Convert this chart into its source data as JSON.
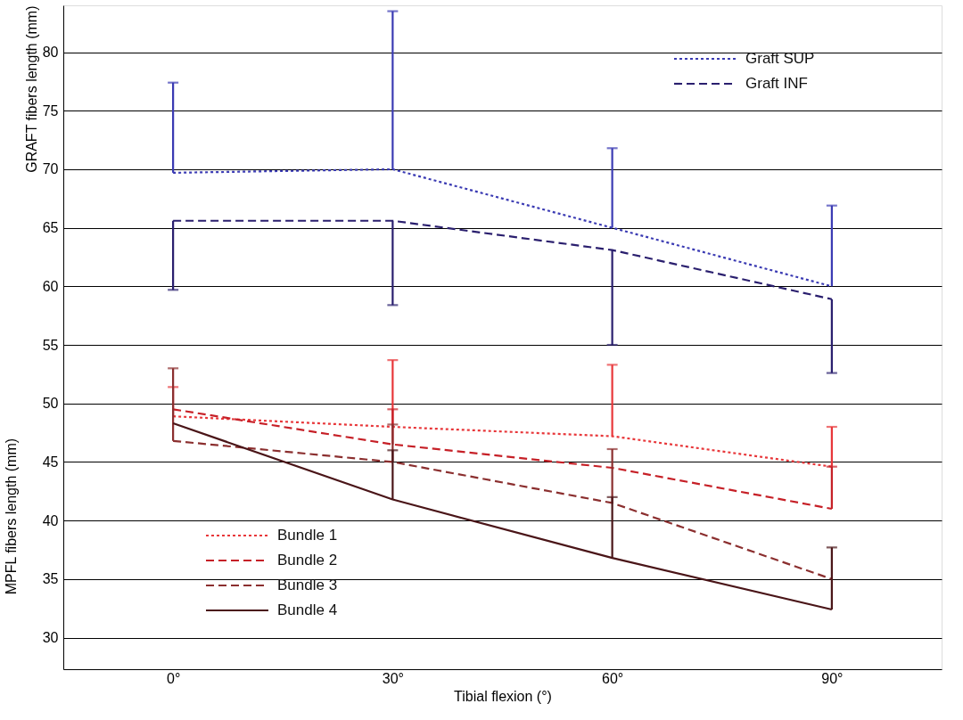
{
  "chart_data": {
    "type": "line",
    "xlabel": "Tibial flexion (°)",
    "ylabel": "GRAFT fibers length (mm)",
    "annotations": [
      "MPFL fibers length (mm)"
    ],
    "categories": [
      "0°",
      "30°",
      "60°",
      "90°"
    ],
    "ylim": [
      27.3,
      84
    ],
    "yticks": [
      30,
      35,
      40,
      45,
      50,
      55,
      60,
      65,
      70,
      75,
      80
    ],
    "grid": "y",
    "legend": "top right",
    "marker": "none",
    "series": [
      {
        "name": "Graft SUP",
        "color": "#3b3bb3",
        "line_style": "dotted",
        "values": [
          69.7,
          70.0,
          65.0,
          60.0
        ],
        "errors": [
          [
            69.7,
            77.4
          ],
          [
            70.0,
            83.5
          ],
          [
            65.0,
            71.8
          ],
          [
            60.0,
            66.9
          ]
        ]
      },
      {
        "name": "Graft INF",
        "color": "#2a1f6e",
        "line_style": "dashed",
        "values": [
          65.6,
          65.6,
          63.1,
          58.9
        ],
        "errors": [
          [
            59.7,
            65.6
          ],
          [
            58.4,
            65.6
          ],
          [
            55.0,
            63.1
          ],
          [
            52.6,
            58.9
          ]
        ]
      },
      {
        "name": "Bundle 1",
        "color": "#e8373a",
        "line_style": "dotted",
        "values": [
          48.9,
          48.0,
          47.2,
          44.6
        ],
        "errors": [
          [
            48.9,
            51.4
          ],
          [
            48.0,
            53.7
          ],
          [
            47.2,
            53.3
          ],
          [
            44.6,
            48.0
          ]
        ]
      },
      {
        "name": "Bundle 2",
        "color": "#c62027",
        "line_style": "dashed",
        "values": [
          49.5,
          46.5,
          44.5,
          41.0
        ],
        "errors": [
          null,
          [
            46.5,
            49.5
          ],
          null,
          [
            41.0,
            44.6
          ]
        ]
      },
      {
        "name": "Bundle 3",
        "color": "#8b2f2f",
        "line_style": "dashed",
        "values": [
          46.8,
          45.0,
          41.5,
          35.0
        ],
        "errors": [
          [
            46.8,
            53.0
          ],
          [
            45.0,
            48.2
          ],
          [
            41.5,
            46.1
          ],
          null
        ]
      },
      {
        "name": "Bundle 4",
        "color": "#4a1518",
        "line_style": "solid",
        "values": [
          48.3,
          41.8,
          36.8,
          32.4
        ],
        "errors": [
          null,
          [
            41.8,
            46.0
          ],
          [
            36.8,
            42.0
          ],
          [
            32.4,
            37.7
          ]
        ]
      }
    ]
  }
}
